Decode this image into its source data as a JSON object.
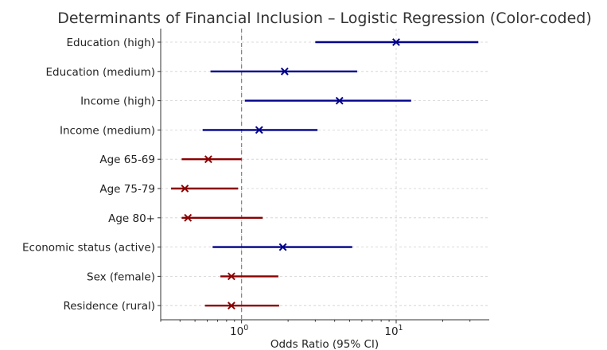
{
  "chart_data": {
    "type": "forest",
    "title": "Determinants of Financial Inclusion – Logistic Regression (Color-coded)",
    "xlabel": "Odds Ratio (95% CI)",
    "ylabel": "",
    "xscale": "log",
    "xlim": [
      0.3,
      40
    ],
    "reference_line": 1,
    "xticks": [
      {
        "value": 1,
        "base": "10",
        "exp": "0"
      },
      {
        "value": 10,
        "base": "10",
        "exp": "1"
      }
    ],
    "colors": {
      "positive": "#00008b",
      "negative": "#8b0000",
      "reference": "#888888"
    },
    "rows": [
      {
        "label": "Education (high)",
        "or": 10.0,
        "lower": 3.0,
        "upper": 34.0,
        "color": "#00008b"
      },
      {
        "label": "Education (medium)",
        "or": 1.9,
        "lower": 0.63,
        "upper": 5.6,
        "color": "#00008b"
      },
      {
        "label": "Income (high)",
        "or": 4.3,
        "lower": 1.05,
        "upper": 12.5,
        "color": "#00008b"
      },
      {
        "label": "Income (medium)",
        "or": 1.3,
        "lower": 0.56,
        "upper": 3.1,
        "color": "#00008b"
      },
      {
        "label": "Age 65-69",
        "or": 0.61,
        "lower": 0.41,
        "upper": 1.0,
        "color": "#8b0000"
      },
      {
        "label": "Age 75-79",
        "or": 0.43,
        "lower": 0.35,
        "upper": 0.95,
        "color": "#8b0000"
      },
      {
        "label": "Age 80+",
        "or": 0.45,
        "lower": 0.41,
        "upper": 1.37,
        "color": "#8b0000"
      },
      {
        "label": "Economic status (active)",
        "or": 1.85,
        "lower": 0.65,
        "upper": 5.2,
        "color": "#00008b"
      },
      {
        "label": "Sex (female)",
        "or": 0.86,
        "lower": 0.73,
        "upper": 1.73,
        "color": "#8b0000"
      },
      {
        "label": "Residence (rural)",
        "or": 0.86,
        "lower": 0.58,
        "upper": 1.75,
        "color": "#8b0000"
      }
    ]
  }
}
